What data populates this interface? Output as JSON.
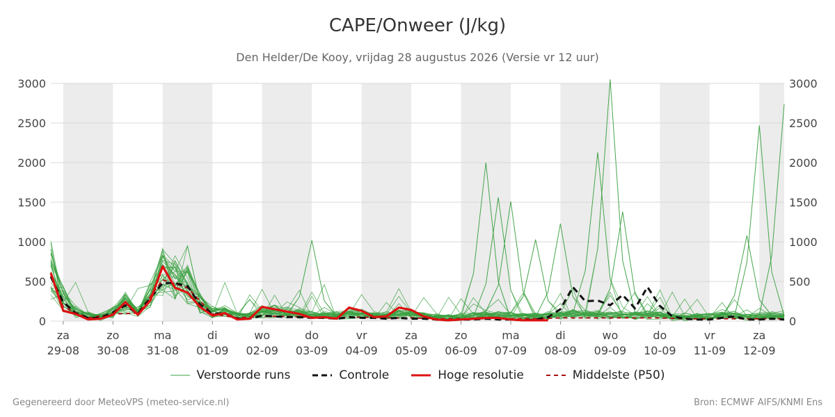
{
  "header": {
    "title": "CAPE/Onweer (J/kg)",
    "subtitle": "Den Helder/De Kooy, vrijdag 28 augustus 2026 (Versie vr 12 uur)"
  },
  "footer": {
    "left": "Gegenereerd door MeteoVPS (meteo-service.nl)",
    "right": "Bron: ECMWF AIFS/KNMI Ens"
  },
  "colors": {
    "ensemble": "#3aa040",
    "control": "#111111",
    "high_res": "#dd1111",
    "median": "#aa1111",
    "night_band": "#ececec",
    "grid": "#d8d8d8"
  },
  "chart_data": {
    "type": "line",
    "title": "CAPE/Onweer (J/kg)",
    "subtitle": "Den Helder/De Kooy, vrijdag 28 augustus 2026 (Versie vr 12 uur)",
    "x_unit": "days since 29-08 00:00",
    "xlim": [
      -0.25,
      14.5
    ],
    "ylim": [
      0,
      3000
    ],
    "yticks": [
      0,
      500,
      1000,
      1500,
      2000,
      2500,
      3000
    ],
    "grid": true,
    "dual_y_axis": true,
    "legend_position": "bottom",
    "x_ticks": [
      {
        "day": "za",
        "date": "29-08"
      },
      {
        "day": "zo",
        "date": "30-08"
      },
      {
        "day": "ma",
        "date": "31-08"
      },
      {
        "day": "di",
        "date": "01-09"
      },
      {
        "day": "wo",
        "date": "02-09"
      },
      {
        "day": "do",
        "date": "03-09"
      },
      {
        "day": "vr",
        "date": "04-09"
      },
      {
        "day": "za",
        "date": "05-09"
      },
      {
        "day": "zo",
        "date": "06-09"
      },
      {
        "day": "ma",
        "date": "07-09"
      },
      {
        "day": "di",
        "date": "08-09"
      },
      {
        "day": "wo",
        "date": "09-09"
      },
      {
        "day": "do",
        "date": "10-09"
      },
      {
        "day": "vr",
        "date": "11-09"
      },
      {
        "day": "za",
        "date": "12-09"
      }
    ],
    "night_bands": [
      [
        0,
        1
      ],
      [
        2,
        3
      ],
      [
        4,
        5
      ],
      [
        6,
        7
      ],
      [
        8,
        9
      ],
      [
        10,
        11
      ],
      [
        12,
        13
      ],
      [
        14,
        14.5
      ]
    ],
    "legend": [
      "Verstoorde runs",
      "Controle",
      "Hoge resolutie",
      "Middelste (P50)"
    ],
    "series": [
      {
        "name": "Hoge resolutie",
        "style": "solid-red",
        "x": [
          -0.25,
          0,
          0.25,
          0.5,
          0.75,
          1,
          1.25,
          1.5,
          1.75,
          2,
          2.25,
          2.5,
          2.75,
          3,
          3.25,
          3.5,
          3.75,
          4,
          4.25,
          4.5,
          4.75,
          5,
          5.25,
          5.5,
          5.75,
          6,
          6.25,
          6.5,
          6.75,
          7,
          7.25,
          7.5,
          7.75,
          8,
          8.25,
          8.5,
          8.75,
          9,
          9.25,
          9.5,
          9.75
        ],
        "y": [
          610,
          130,
          90,
          20,
          30,
          80,
          240,
          80,
          260,
          690,
          420,
          360,
          180,
          70,
          100,
          20,
          30,
          180,
          150,
          120,
          90,
          40,
          50,
          30,
          170,
          130,
          50,
          60,
          170,
          140,
          60,
          20,
          10,
          20,
          30,
          40,
          40,
          20,
          10,
          10,
          10
        ]
      },
      {
        "name": "Controle",
        "style": "dashed-black",
        "x": [
          -0.25,
          0,
          0.25,
          0.5,
          0.75,
          1,
          1.25,
          1.5,
          1.75,
          2,
          2.25,
          2.5,
          2.75,
          3,
          3.25,
          3.5,
          3.75,
          4,
          4.25,
          4.5,
          4.75,
          5,
          5.25,
          5.5,
          5.75,
          6,
          6.25,
          6.5,
          6.75,
          7,
          7.25,
          7.5,
          7.75,
          8,
          8.25,
          8.5,
          8.75,
          9,
          9.25,
          9.5,
          9.75,
          10,
          10.25,
          10.5,
          10.75,
          11,
          11.25,
          11.5,
          11.75,
          12,
          12.25,
          12.5,
          12.75,
          13,
          13.25,
          13.5,
          13.75,
          14,
          14.25,
          14.5
        ],
        "y": [
          560,
          240,
          100,
          40,
          40,
          110,
          200,
          90,
          290,
          480,
          480,
          440,
          210,
          90,
          100,
          30,
          30,
          70,
          60,
          50,
          50,
          40,
          40,
          30,
          50,
          40,
          40,
          30,
          40,
          30,
          30,
          20,
          10,
          20,
          20,
          30,
          20,
          20,
          10,
          20,
          50,
          150,
          430,
          250,
          260,
          200,
          330,
          160,
          430,
          190,
          60,
          30,
          20,
          20,
          40,
          60,
          20,
          20,
          30,
          20
        ]
      },
      {
        "name": "Middelste (P50)",
        "style": "dashed-darkred",
        "x": [
          -0.25,
          0,
          0.5,
          1,
          1.5,
          2,
          2.5,
          3,
          3.5,
          4,
          4.5,
          5,
          5.5,
          6,
          6.5,
          7,
          7.5,
          8,
          8.5,
          9,
          9.5,
          10,
          10.5,
          11,
          11.5,
          12,
          12.5,
          13,
          13.5,
          14,
          14.5
        ],
        "y": [
          580,
          180,
          40,
          90,
          100,
          520,
          420,
          90,
          40,
          60,
          60,
          50,
          40,
          50,
          40,
          40,
          30,
          30,
          30,
          30,
          30,
          40,
          40,
          40,
          40,
          40,
          30,
          30,
          30,
          30,
          30
        ]
      }
    ],
    "ensemble": {
      "name": "Verstoorde runs",
      "member_count": 28,
      "x_step": 0.25,
      "base_profile": [
        600,
        250,
        100,
        50,
        40,
        100,
        200,
        90,
        300,
        550,
        480,
        420,
        200,
        90,
        100,
        50,
        50,
        100,
        100,
        90,
        80,
        60,
        60,
        50,
        80,
        70,
        60,
        50,
        80,
        70,
        50,
        40,
        30,
        40,
        50,
        60,
        60,
        50,
        40,
        40,
        50,
        60,
        70,
        70,
        70,
        60,
        60,
        50,
        60,
        50,
        40,
        40,
        40,
        40,
        50,
        50,
        40,
        40,
        50,
        60
      ],
      "peaks": [
        {
          "x": 8.5,
          "y": 2000
        },
        {
          "x": 8.75,
          "y": 1560
        },
        {
          "x": 9.0,
          "y": 1510
        },
        {
          "x": 10.75,
          "y": 2130
        },
        {
          "x": 11.0,
          "y": 3050
        },
        {
          "x": 11.25,
          "y": 1380
        },
        {
          "x": 10.0,
          "y": 1230
        },
        {
          "x": 13.75,
          "y": 1080
        },
        {
          "x": 14.0,
          "y": 2470
        },
        {
          "x": 14.5,
          "y": 2740
        },
        {
          "x": 5.0,
          "y": 1020
        },
        {
          "x": 2.5,
          "y": 950
        },
        {
          "x": 9.5,
          "y": 1030
        }
      ]
    }
  }
}
